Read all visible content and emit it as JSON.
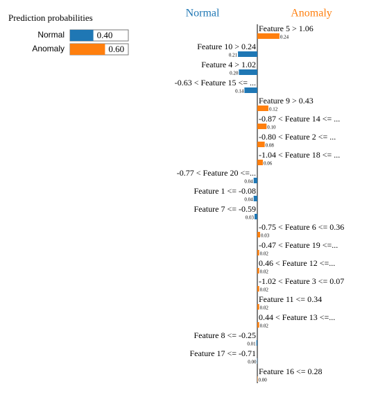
{
  "chart_data": [
    {
      "type": "probability-bars",
      "title": "Prediction probabilities",
      "categories": [
        "Normal",
        "Anomaly"
      ],
      "values": [
        0.4,
        0.6
      ],
      "value_labels": [
        "0.40",
        "0.60"
      ],
      "colors": [
        "#1f77b4",
        "#ff7f0e"
      ],
      "xlim": [
        0,
        1
      ]
    },
    {
      "type": "diverging-bar",
      "categories": [
        "Feature 5 > 1.06",
        "Feature 10 > 0.24",
        "Feature 4 > 1.02",
        "-0.63 < Feature 15 <= ...",
        "Feature 9 > 0.43",
        "-0.87 < Feature 14 <= ...",
        "-0.80 < Feature 2 <= ...",
        "-1.04 < Feature 18 <= ...",
        "-0.77 < Feature 20 <=...",
        "Feature 1 <= -0.08",
        "Feature 7 <= -0.59",
        "-0.75 < Feature 6 <= 0.36",
        "-0.47 < Feature 19 <=...",
        "0.46 < Feature 12 <=...",
        "-1.02 < Feature 3 <= 0.07",
        "Feature 11 <= 0.34",
        "0.44 < Feature 13 <=...",
        "Feature 8 <= -0.25",
        "Feature 17 <= -0.71",
        "Feature 16 <= 0.28"
      ],
      "series": [
        {
          "name": "Normal",
          "color": "#1f77b4",
          "values": [
            null,
            0.21,
            0.2,
            0.14,
            null,
            null,
            null,
            null,
            0.04,
            0.04,
            0.03,
            null,
            null,
            null,
            null,
            null,
            null,
            0.01,
            0.004,
            null
          ],
          "value_labels": [
            null,
            "0.21",
            "0.20",
            "0.14",
            null,
            null,
            null,
            null,
            "0.04",
            "0.04",
            "0.03",
            null,
            null,
            null,
            null,
            null,
            null,
            "0.01",
            "0.00",
            null
          ]
        },
        {
          "name": "Anomaly",
          "color": "#ff7f0e",
          "values": [
            0.24,
            null,
            null,
            null,
            0.12,
            0.1,
            0.08,
            0.06,
            null,
            null,
            null,
            0.03,
            0.02,
            0.02,
            0.02,
            0.02,
            0.02,
            null,
            null,
            0.004
          ],
          "value_labels": [
            "0.24",
            null,
            null,
            null,
            "0.12",
            "0.10",
            "0.08",
            "0.06",
            null,
            null,
            null,
            "0.03",
            "0.02",
            "0.02",
            "0.02",
            "0.02",
            "0.02",
            null,
            null,
            "0.00"
          ]
        }
      ]
    }
  ]
}
